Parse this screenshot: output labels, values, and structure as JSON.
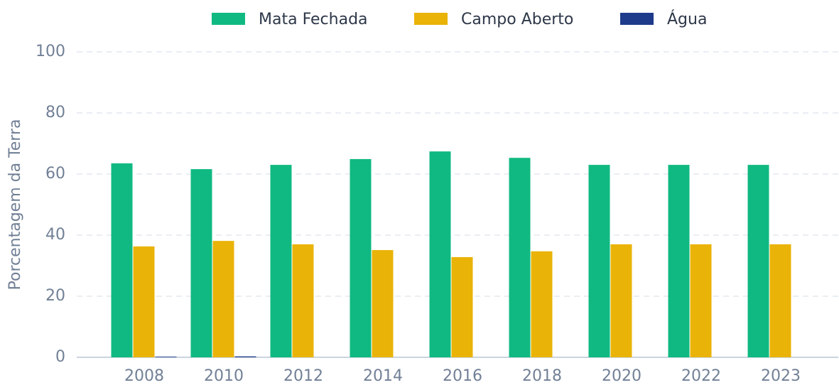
{
  "chart_data": {
    "type": "bar",
    "y_label": "Porcentagem da Terra",
    "categories": [
      "2008",
      "2010",
      "2012",
      "2014",
      "2016",
      "2018",
      "2020",
      "2022",
      "2023"
    ],
    "series": [
      {
        "name": "Mata Fechada",
        "color": "#10b981",
        "values": [
          63.5,
          61.6,
          63.0,
          64.9,
          67.4,
          65.3,
          63.0,
          63.0,
          63.0
        ]
      },
      {
        "name": "Campo Aberto",
        "color": "#eab308",
        "values": [
          36.3,
          38.1,
          37.0,
          35.1,
          32.8,
          34.7,
          37.0,
          37.0,
          37.0
        ]
      },
      {
        "name": "Água",
        "color": "#1e3a8a",
        "values": [
          0.2,
          0.3,
          0,
          0,
          0,
          0,
          0,
          0,
          0
        ]
      }
    ],
    "ylim": [
      0,
      100
    ],
    "yticks": [
      0,
      20,
      40,
      60,
      80,
      100
    ],
    "grid": true,
    "legend": "top"
  }
}
